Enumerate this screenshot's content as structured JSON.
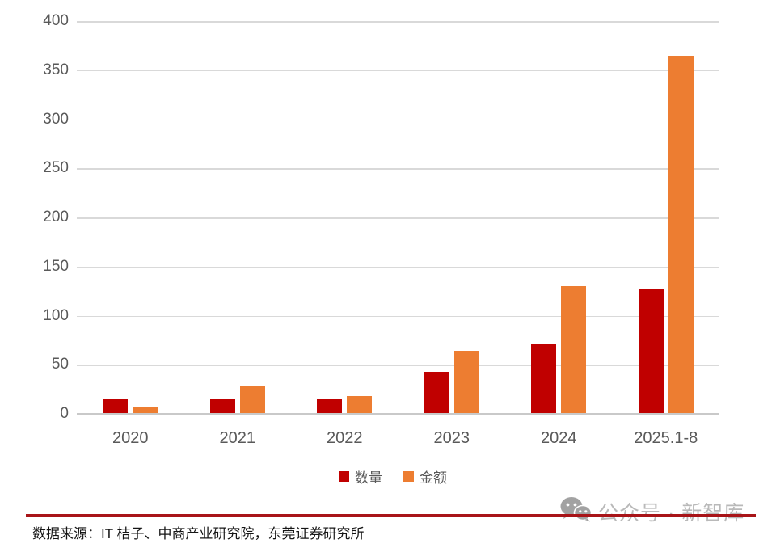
{
  "chart_data": {
    "type": "bar",
    "title": "",
    "categories": [
      "2020",
      "2021",
      "2022",
      "2023",
      "2024",
      "2025.1-8"
    ],
    "series": [
      {
        "name": "数量",
        "color": "#c00000",
        "values": [
          15,
          15,
          15,
          43,
          72,
          127
        ]
      },
      {
        "name": "金额",
        "color": "#ed7d31",
        "values": [
          7,
          28,
          18,
          64,
          130,
          365
        ]
      }
    ],
    "ylim": [
      0,
      400
    ],
    "yticks": [
      0,
      50,
      100,
      150,
      200,
      250,
      300,
      350,
      400
    ],
    "grid": true,
    "legend_position": "bottom"
  },
  "colors": {
    "bar_quantity": "#c00000",
    "bar_amount": "#ed7d31",
    "gridline": "#d9d9d9",
    "axis_text": "#595959",
    "divider": "#a81418",
    "watermark_text": "#b9b9b9"
  },
  "footer": {
    "source": "数据来源：IT 桔子、中商产业研究院，东莞证券研究所"
  },
  "watermark": {
    "icon": "wechat-icon",
    "text": "公众号 · 新智库"
  }
}
